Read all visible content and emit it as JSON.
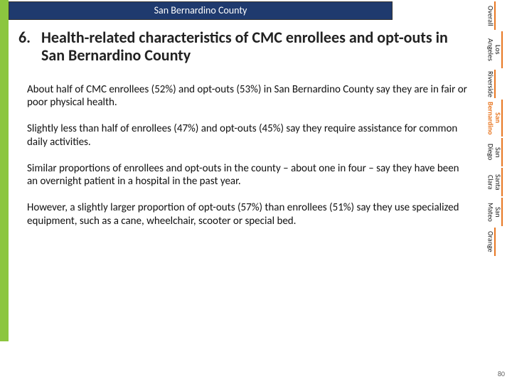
{
  "colors": {
    "header_bg": "#1f3a6e",
    "header_text": "#ffffff",
    "green_bar": "#8cc63f",
    "tab_accent": "#e87722",
    "body_text": "#111111",
    "background": "#ffffff"
  },
  "header": {
    "title": "San Bernardino County"
  },
  "section": {
    "number": "6.",
    "title": "Health-related characteristics of CMC enrollees and opt-outs in San Bernardino County"
  },
  "bullets": [
    "About half of CMC enrollees (52%) and opt-outs (53%) in San Bernardino County say they are in fair or poor physical health.",
    "Slightly less than half of enrollees (47%) and opt-outs (45%) say they require assistance for common daily activities.",
    "Similar proportions of enrollees and opt-outs in the county – about one in four – say they have been an overnight patient in a hospital in the past year.",
    "However, a slightly larger proportion of opt-outs (57%) than enrollees (51%) say they use specialized equipment, such as a cane, wheelchair, scooter or special bed."
  ],
  "tabs": [
    {
      "label": "Overall",
      "accent": true,
      "active": false
    },
    {
      "label": "Los Angeles",
      "accent": true,
      "active": false
    },
    {
      "label": "Riverside",
      "accent": true,
      "active": false
    },
    {
      "label": "San Bernardino",
      "accent": true,
      "active": true
    },
    {
      "label": "San Diego",
      "accent": true,
      "active": false
    },
    {
      "label": "Santa Clara",
      "accent": true,
      "active": false
    },
    {
      "label": "San Mateo",
      "accent": true,
      "active": false
    },
    {
      "label": "Orange",
      "accent": true,
      "active": false
    }
  ],
  "page_number": "80"
}
